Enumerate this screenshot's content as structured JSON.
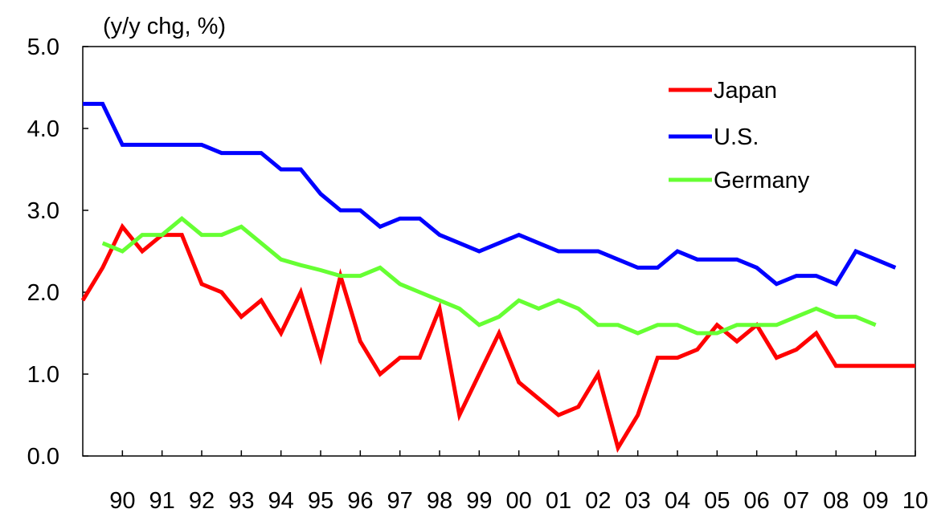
{
  "chart_data": {
    "type": "line",
    "unit_label": "(y/y chg, %)",
    "x_tick_labels": [
      "90",
      "91",
      "92",
      "93",
      "94",
      "95",
      "96",
      "97",
      "98",
      "99",
      "00",
      "01",
      "02",
      "03",
      "04",
      "05",
      "06",
      "07",
      "08",
      "09",
      "10"
    ],
    "y_tick_labels": [
      "5.0",
      "4.0",
      "3.0",
      "2.0",
      "1.0",
      "0.0"
    ],
    "y_ticks": [
      5.0,
      4.0,
      3.0,
      2.0,
      1.0,
      0.0
    ],
    "ylim": [
      0,
      5
    ],
    "x_range": [
      1989.0,
      2010.0
    ],
    "grid": false,
    "legend_position": "top-right",
    "series": [
      {
        "name": "Japan",
        "color": "#ff0000",
        "points": [
          [
            1989.0,
            1.9
          ],
          [
            1989.5,
            2.3
          ],
          [
            1990.0,
            2.8
          ],
          [
            1990.5,
            2.5
          ],
          [
            1991.0,
            2.7
          ],
          [
            1991.5,
            2.7
          ],
          [
            1992.0,
            2.1
          ],
          [
            1992.5,
            2.0
          ],
          [
            1993.0,
            1.7
          ],
          [
            1993.5,
            1.9
          ],
          [
            1994.0,
            1.5
          ],
          [
            1994.5,
            2.0
          ],
          [
            1995.0,
            1.2
          ],
          [
            1995.5,
            2.2
          ],
          [
            1996.0,
            1.4
          ],
          [
            1996.5,
            1.0
          ],
          [
            1997.0,
            1.2
          ],
          [
            1997.5,
            1.2
          ],
          [
            1998.0,
            1.8
          ],
          [
            1998.5,
            0.5
          ],
          [
            1999.0,
            1.0
          ],
          [
            1999.5,
            1.5
          ],
          [
            2000.0,
            0.9
          ],
          [
            2000.5,
            0.7
          ],
          [
            2001.0,
            0.5
          ],
          [
            2001.5,
            0.6
          ],
          [
            2002.0,
            1.0
          ],
          [
            2002.5,
            0.1
          ],
          [
            2003.0,
            0.5
          ],
          [
            2003.5,
            1.2
          ],
          [
            2004.0,
            1.2
          ],
          [
            2004.5,
            1.3
          ],
          [
            2005.0,
            1.6
          ],
          [
            2005.5,
            1.4
          ],
          [
            2006.0,
            1.6
          ],
          [
            2006.5,
            1.2
          ],
          [
            2007.0,
            1.3
          ],
          [
            2007.5,
            1.5
          ],
          [
            2008.0,
            1.1
          ],
          [
            2008.5,
            1.1
          ],
          [
            2009.0,
            1.1
          ],
          [
            2009.5,
            1.1
          ],
          [
            2010.0,
            1.1
          ]
        ]
      },
      {
        "name": "U.S.",
        "color": "#0000ff",
        "points": [
          [
            1989.0,
            4.3
          ],
          [
            1989.5,
            4.3
          ],
          [
            1990.0,
            3.8
          ],
          [
            1990.5,
            3.8
          ],
          [
            1991.0,
            3.8
          ],
          [
            1991.5,
            3.8
          ],
          [
            1992.0,
            3.8
          ],
          [
            1992.5,
            3.7
          ],
          [
            1993.0,
            3.7
          ],
          [
            1993.5,
            3.7
          ],
          [
            1994.0,
            3.5
          ],
          [
            1994.5,
            3.5
          ],
          [
            1995.0,
            3.2
          ],
          [
            1995.5,
            3.0
          ],
          [
            1996.0,
            3.0
          ],
          [
            1996.5,
            2.8
          ],
          [
            1997.0,
            2.9
          ],
          [
            1997.5,
            2.9
          ],
          [
            1998.0,
            2.7
          ],
          [
            1998.5,
            2.6
          ],
          [
            1999.0,
            2.5
          ],
          [
            1999.5,
            2.6
          ],
          [
            2000.0,
            2.7
          ],
          [
            2000.5,
            2.6
          ],
          [
            2001.0,
            2.5
          ],
          [
            2001.5,
            2.5
          ],
          [
            2002.0,
            2.5
          ],
          [
            2002.5,
            2.4
          ],
          [
            2003.0,
            2.3
          ],
          [
            2003.5,
            2.3
          ],
          [
            2004.0,
            2.5
          ],
          [
            2004.5,
            2.4
          ],
          [
            2005.0,
            2.4
          ],
          [
            2005.5,
            2.4
          ],
          [
            2006.0,
            2.3
          ],
          [
            2006.5,
            2.1
          ],
          [
            2007.0,
            2.2
          ],
          [
            2007.5,
            2.2
          ],
          [
            2008.0,
            2.1
          ],
          [
            2008.5,
            2.5
          ],
          [
            2009.0,
            2.4
          ],
          [
            2009.5,
            2.3
          ]
        ]
      },
      {
        "name": "Germany",
        "color": "#66ff33",
        "points": [
          [
            1989.5,
            2.6
          ],
          [
            1990.0,
            2.5
          ],
          [
            1990.5,
            2.7
          ],
          [
            1991.0,
            2.7
          ],
          [
            1991.5,
            2.9
          ],
          [
            1992.0,
            2.7
          ],
          [
            1992.5,
            2.7
          ],
          [
            1993.0,
            2.8
          ],
          [
            1993.5,
            2.6
          ],
          [
            1994.0,
            2.4
          ],
          [
            1994.5,
            2.33
          ],
          [
            1995.0,
            2.27
          ],
          [
            1995.5,
            2.2
          ],
          [
            1996.0,
            2.2
          ],
          [
            1996.5,
            2.3
          ],
          [
            1997.0,
            2.1
          ],
          [
            1997.5,
            2.0
          ],
          [
            1998.0,
            1.9
          ],
          [
            1998.5,
            1.8
          ],
          [
            1999.0,
            1.6
          ],
          [
            1999.5,
            1.7
          ],
          [
            2000.0,
            1.9
          ],
          [
            2000.5,
            1.8
          ],
          [
            2001.0,
            1.9
          ],
          [
            2001.5,
            1.8
          ],
          [
            2002.0,
            1.6
          ],
          [
            2002.5,
            1.6
          ],
          [
            2003.0,
            1.5
          ],
          [
            2003.5,
            1.6
          ],
          [
            2004.0,
            1.6
          ],
          [
            2004.5,
            1.5
          ],
          [
            2005.0,
            1.5
          ],
          [
            2005.5,
            1.6
          ],
          [
            2006.0,
            1.6
          ],
          [
            2006.5,
            1.6
          ],
          [
            2007.0,
            1.7
          ],
          [
            2007.5,
            1.8
          ],
          [
            2008.0,
            1.7
          ],
          [
            2008.5,
            1.7
          ],
          [
            2009.0,
            1.6
          ]
        ]
      }
    ]
  }
}
